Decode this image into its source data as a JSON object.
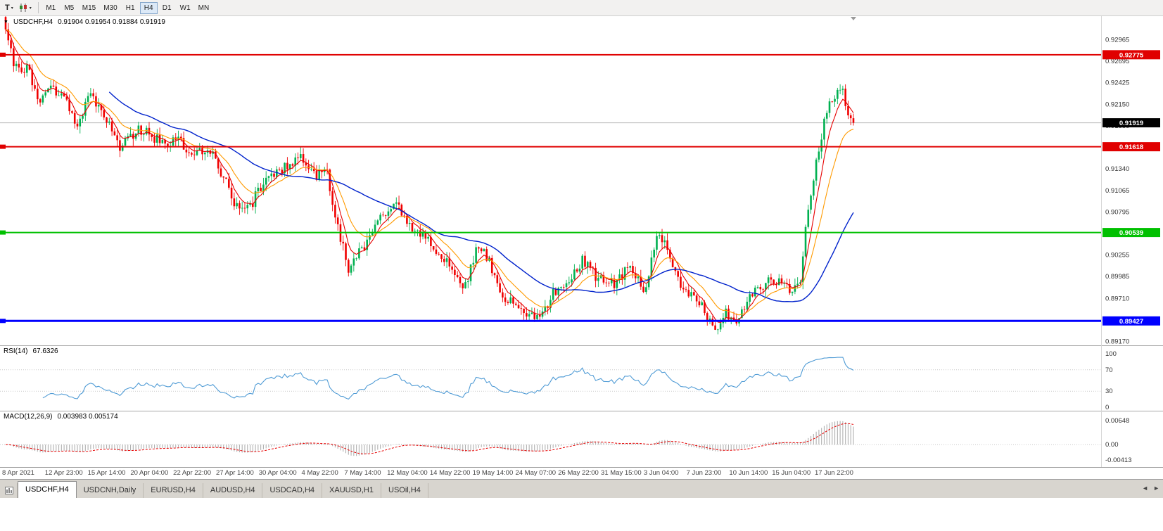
{
  "icons": {
    "text_tool": "T",
    "caret": "▾",
    "symbol_marker": "▼",
    "tab_scroll_left": "◄",
    "tab_scroll_right": "►"
  },
  "toolbar": {
    "timeframes": [
      "M1",
      "M5",
      "M15",
      "M30",
      "H1",
      "H4",
      "D1",
      "W1",
      "MN"
    ],
    "active_timeframe": "H4"
  },
  "chart": {
    "symbol_label": "USDCHF,H4",
    "ohlc": "0.91904 0.91954 0.91884 0.91919",
    "price_axis": {
      "range": [
        0.8912,
        0.9326
      ],
      "ticks": [
        "0.92965",
        "0.92695",
        "0.92425",
        "0.92150",
        "0.91880",
        "0.91610",
        "0.91340",
        "0.91065",
        "0.90795",
        "0.90525",
        "0.90255",
        "0.89985",
        "0.89710",
        "0.89440",
        "0.89170"
      ]
    },
    "hlines": [
      {
        "label": "0.92775",
        "price": 0.92775,
        "color": "#e00000",
        "width": 2
      },
      {
        "label": "0.91618",
        "price": 0.91618,
        "color": "#e00000",
        "width": 2
      },
      {
        "label": "0.90539",
        "price": 0.90539,
        "color": "#00c000",
        "width": 2
      },
      {
        "label": "0.89427",
        "price": 0.89427,
        "color": "#0000ff",
        "width": 3
      }
    ],
    "bid": {
      "label": "0.91919",
      "price": 0.91919
    },
    "colors": {
      "bull": "#00b050",
      "bear": "#f00000",
      "rsi": "#4f9bd5",
      "hist": "#b0b0b0",
      "signal": "#e60000"
    }
  },
  "chart_data": {
    "type": "candlestick",
    "symbol": "USDCHF",
    "timeframe": "H4",
    "num_candles": 320,
    "anchors": [
      [
        0.0,
        0.9315
      ],
      [
        0.008,
        0.9268
      ],
      [
        0.027,
        0.9258
      ],
      [
        0.039,
        0.921
      ],
      [
        0.051,
        0.9242
      ],
      [
        0.072,
        0.9215
      ],
      [
        0.085,
        0.919
      ],
      [
        0.101,
        0.9228
      ],
      [
        0.118,
        0.92
      ],
      [
        0.134,
        0.9158
      ],
      [
        0.159,
        0.9185
      ],
      [
        0.188,
        0.9163
      ],
      [
        0.205,
        0.9172
      ],
      [
        0.217,
        0.915
      ],
      [
        0.242,
        0.9158
      ],
      [
        0.259,
        0.912
      ],
      [
        0.271,
        0.909
      ],
      [
        0.288,
        0.9085
      ],
      [
        0.305,
        0.9122
      ],
      [
        0.325,
        0.9135
      ],
      [
        0.346,
        0.9148
      ],
      [
        0.363,
        0.9125
      ],
      [
        0.379,
        0.9128
      ],
      [
        0.392,
        0.906
      ],
      [
        0.404,
        0.9008
      ],
      [
        0.421,
        0.9035
      ],
      [
        0.441,
        0.907
      ],
      [
        0.462,
        0.9092
      ],
      [
        0.479,
        0.906
      ],
      [
        0.495,
        0.9048
      ],
      [
        0.512,
        0.903
      ],
      [
        0.529,
        0.9
      ],
      [
        0.541,
        0.898
      ],
      [
        0.558,
        0.904
      ],
      [
        0.57,
        0.9018
      ],
      [
        0.587,
        0.8972
      ],
      [
        0.607,
        0.8958
      ],
      [
        0.626,
        0.8944
      ],
      [
        0.645,
        0.8975
      ],
      [
        0.666,
        0.9
      ],
      [
        0.682,
        0.902
      ],
      [
        0.699,
        0.8995
      ],
      [
        0.719,
        0.8988
      ],
      [
        0.736,
        0.901
      ],
      [
        0.753,
        0.898
      ],
      [
        0.768,
        0.9045
      ],
      [
        0.78,
        0.904
      ],
      [
        0.794,
        0.8992
      ],
      [
        0.811,
        0.897
      ],
      [
        0.823,
        0.8958
      ],
      [
        0.835,
        0.8928
      ],
      [
        0.85,
        0.8952
      ],
      [
        0.864,
        0.894
      ],
      [
        0.877,
        0.8975
      ],
      [
        0.898,
        0.899
      ],
      [
        0.914,
        0.899
      ],
      [
        0.927,
        0.8982
      ],
      [
        0.938,
        0.8995
      ],
      [
        0.946,
        0.9085
      ],
      [
        0.956,
        0.914
      ],
      [
        0.966,
        0.9195
      ],
      [
        0.977,
        0.9228
      ],
      [
        0.986,
        0.9235
      ],
      [
        0.993,
        0.92
      ],
      [
        1.0,
        0.9192
      ]
    ],
    "overlays": [
      {
        "name": "ma-fast-line",
        "type": "ema",
        "period": 6,
        "color": "#e60000",
        "width": 1.1
      },
      {
        "name": "ma-mid-line",
        "type": "ema",
        "period": 15,
        "color": "#ff9a00",
        "width": 1.1
      },
      {
        "name": "ma-slow-line",
        "type": "sma",
        "period": 40,
        "color": "#0022cc",
        "width": 1.4
      }
    ]
  },
  "rsi": {
    "label": "RSI(14)",
    "value": "67.6326",
    "period": 14,
    "ticks": [
      100,
      70,
      30,
      0
    ],
    "levels": [
      70,
      30
    ]
  },
  "macd": {
    "label": "MACD(12,26,9)",
    "values": "0.003983 0.005174",
    "fast": 12,
    "slow": 26,
    "signal": 9,
    "ticks": [
      "0.00648",
      "0.00",
      "-0.00413"
    ],
    "range": [
      -0.00413,
      0.00648
    ]
  },
  "date_axis": {
    "labels": [
      "8 Apr 2021",
      "12 Apr 23:00",
      "15 Apr 14:00",
      "20 Apr 04:00",
      "22 Apr 22:00",
      "27 Apr 14:00",
      "30 Apr 04:00",
      "4 May 22:00",
      "7 May 14:00",
      "12 May 04:00",
      "14 May 22:00",
      "19 May 14:00",
      "24 May 07:00",
      "26 May 22:00",
      "31 May 15:00",
      "3 Jun 04:00",
      "7 Jun 23:00",
      "10 Jun 14:00",
      "15 Jun 04:00",
      "17 Jun 22:00"
    ]
  },
  "tabs": {
    "items": [
      {
        "label": "USDCHF,H4",
        "active": true
      },
      {
        "label": "USDCNH,Daily",
        "active": false
      },
      {
        "label": "EURUSD,H4",
        "active": false
      },
      {
        "label": "AUDUSD,H4",
        "active": false
      },
      {
        "label": "USDCAD,H4",
        "active": false
      },
      {
        "label": "XAUUSD,H1",
        "active": false
      },
      {
        "label": "USOil,H4",
        "active": false
      }
    ]
  }
}
